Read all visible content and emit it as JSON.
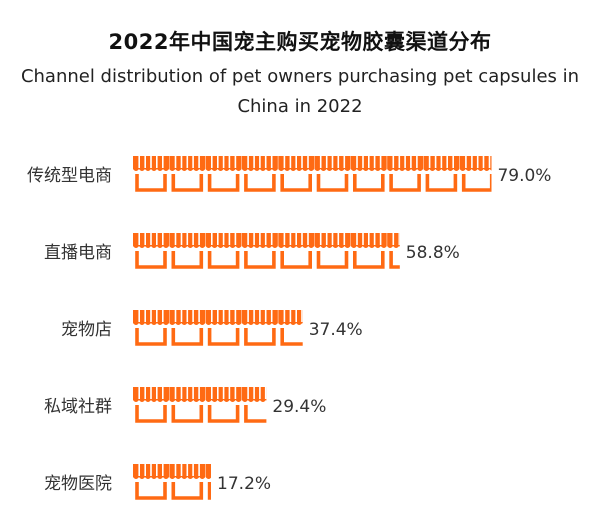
{
  "title": {
    "zh": "2022年中国宠主购买宠物胶囊渠道分布",
    "en": "Channel distribution of pet owners purchasing pet capsules in China in 2022"
  },
  "colors": {
    "icon": "#ff6a13",
    "text": "#333333"
  },
  "icon_name": "storefront-icon",
  "chart_data": {
    "type": "bar",
    "title": "2022年中国宠主购买宠物胶囊渠道分布",
    "subtitle": "Channel distribution of pet owners purchasing pet capsules in China in 2022",
    "categories": [
      "传统型电商",
      "直播电商",
      "宠物店",
      "私域社群",
      "宠物医院"
    ],
    "values": [
      79.0,
      58.8,
      37.4,
      29.4,
      17.2
    ],
    "value_labels": [
      "79.0%",
      "58.8%",
      "37.4%",
      "29.4%",
      "17.2%"
    ],
    "unit": "%",
    "icon_value": 8,
    "xlabel": "",
    "ylabel": "",
    "grid": false,
    "legend": "none"
  }
}
